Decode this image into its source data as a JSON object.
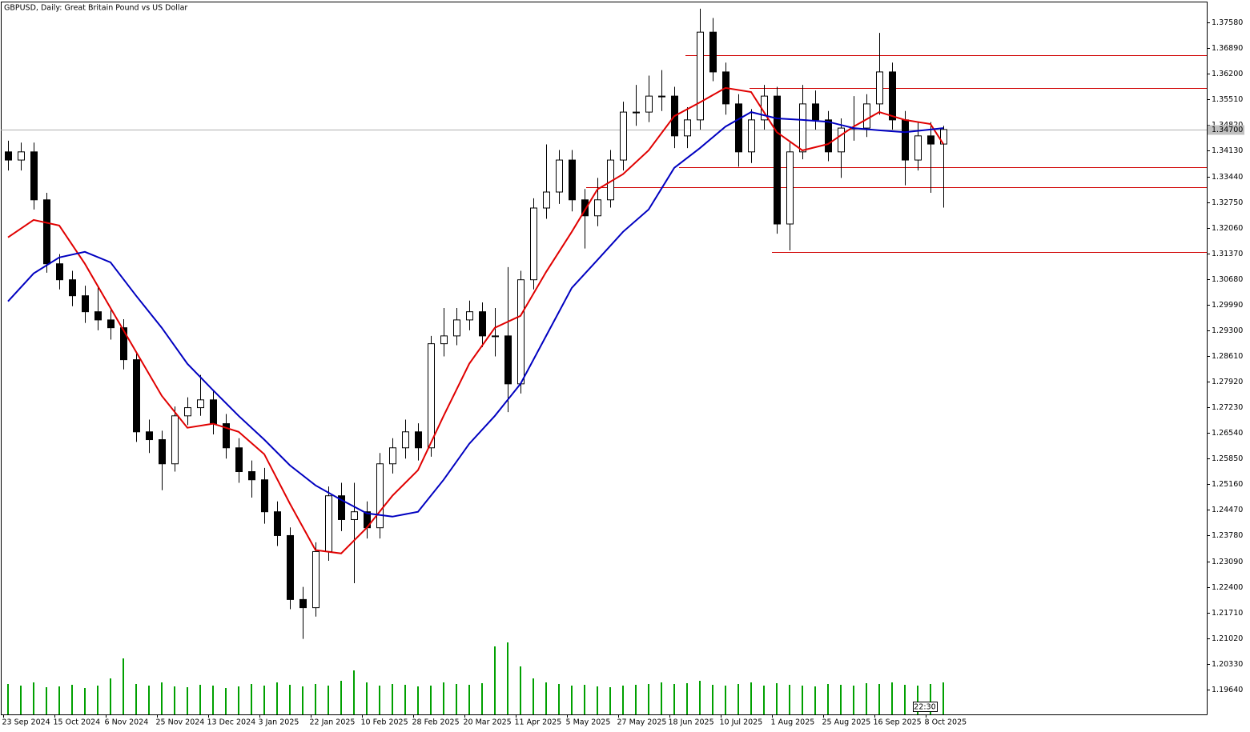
{
  "chart_data": {
    "type": "candlestick",
    "title": "GBPUSD, Daily:  Great Britain Pound vs US Dollar",
    "x": [
      0,
      4,
      8,
      12,
      16,
      20,
      24,
      28,
      32,
      36,
      40,
      44,
      48,
      52,
      56,
      60,
      64,
      68,
      72,
      76,
      80,
      84,
      88,
      92,
      96,
      100,
      104,
      108,
      112,
      116,
      120,
      124,
      128,
      132,
      136,
      140,
      144,
      148,
      152,
      156,
      160,
      164,
      168,
      172,
      176,
      180,
      184,
      188,
      192,
      196,
      200,
      204,
      208,
      212,
      216,
      220,
      224,
      228,
      232,
      236,
      240,
      244,
      248,
      252,
      256,
      260,
      264,
      268,
      272,
      276,
      280,
      284,
      288,
      292
    ],
    "open": [
      1.341,
      1.3388,
      1.341,
      1.3281,
      1.3109,
      1.3066,
      1.3023,
      1.298,
      1.2958,
      1.2937,
      1.2851,
      1.2657,
      1.2636,
      1.2571,
      1.27,
      1.2722,
      1.2743,
      1.2679,
      1.2614,
      1.255,
      1.2528,
      1.2442,
      1.2378,
      1.2206,
      1.2184,
      1.2335,
      1.2485,
      1.2421,
      1.2442,
      1.2399,
      1.2571,
      1.2614,
      1.2657,
      1.2614,
      1.2894,
      1.2915,
      1.2958,
      1.298,
      1.2915,
      1.2915,
      1.2786,
      1.3066,
      1.3259,
      1.3302,
      1.3388,
      1.3281,
      1.3238,
      1.3281,
      1.3388,
      1.3517,
      1.3517,
      1.356,
      1.356,
      1.3453,
      1.3496,
      1.3732,
      1.3625,
      1.3539,
      1.341,
      1.3496,
      1.356,
      1.3216,
      1.341,
      1.3539,
      1.3496,
      1.341,
      1.3474,
      1.3474,
      1.3539,
      1.3625,
      1.3496,
      1.3388,
      1.3453,
      1.3431
    ],
    "high": [
      1.344,
      1.3435,
      1.3435,
      1.33,
      1.3135,
      1.309,
      1.305,
      1.3045,
      1.2985,
      1.296,
      1.287,
      1.269,
      1.266,
      1.2725,
      1.275,
      1.281,
      1.277,
      1.2705,
      1.264,
      1.258,
      1.256,
      1.247,
      1.24,
      1.224,
      1.236,
      1.251,
      1.252,
      1.252,
      1.247,
      1.26,
      1.264,
      1.269,
      1.268,
      1.2915,
      1.299,
      1.299,
      1.301,
      1.3005,
      1.299,
      1.31,
      1.309,
      1.3285,
      1.343,
      1.3415,
      1.3415,
      1.331,
      1.334,
      1.3415,
      1.3545,
      1.359,
      1.3615,
      1.363,
      1.3585,
      1.353,
      1.3795,
      1.377,
      1.365,
      1.3565,
      1.3525,
      1.359,
      1.3585,
      1.3435,
      1.359,
      1.3575,
      1.352,
      1.35,
      1.356,
      1.3565,
      1.373,
      1.365,
      1.352,
      1.349,
      1.349,
      1.348
    ],
    "low": [
      1.336,
      1.336,
      1.3255,
      1.3085,
      1.304,
      1.2995,
      1.295,
      1.293,
      1.2905,
      1.2825,
      1.263,
      1.26,
      1.25,
      1.255,
      1.2675,
      1.27,
      1.265,
      1.2585,
      1.252,
      1.248,
      1.241,
      1.235,
      1.218,
      1.21,
      1.216,
      1.231,
      1.239,
      1.225,
      1.237,
      1.237,
      1.2545,
      1.2585,
      1.258,
      1.259,
      1.286,
      1.289,
      1.293,
      1.2885,
      1.286,
      1.271,
      1.276,
      1.304,
      1.323,
      1.327,
      1.325,
      1.315,
      1.321,
      1.326,
      1.336,
      1.348,
      1.349,
      1.352,
      1.342,
      1.342,
      1.347,
      1.36,
      1.351,
      1.337,
      1.338,
      1.347,
      1.319,
      1.3145,
      1.339,
      1.347,
      1.3385,
      1.334,
      1.344,
      1.345,
      1.351,
      1.347,
      1.332,
      1.336,
      1.33,
      1.326
    ],
    "close": [
      1.3388,
      1.341,
      1.3281,
      1.3109,
      1.3066,
      1.3023,
      1.298,
      1.2958,
      1.2937,
      1.2851,
      1.2657,
      1.2636,
      1.2571,
      1.27,
      1.2722,
      1.2743,
      1.2679,
      1.2614,
      1.255,
      1.2528,
      1.2442,
      1.2378,
      1.2206,
      1.2184,
      1.2335,
      1.2485,
      1.2421,
      1.2442,
      1.2399,
      1.2571,
      1.2614,
      1.2657,
      1.2614,
      1.2894,
      1.2915,
      1.2958,
      1.298,
      1.2915,
      1.2915,
      1.2786,
      1.3066,
      1.3259,
      1.3302,
      1.3388,
      1.3281,
      1.3238,
      1.3281,
      1.3388,
      1.3517,
      1.3517,
      1.356,
      1.356,
      1.3453,
      1.3496,
      1.3732,
      1.3625,
      1.3539,
      1.341,
      1.3496,
      1.356,
      1.3216,
      1.341,
      1.3539,
      1.3496,
      1.341,
      1.3474,
      1.3474,
      1.3539,
      1.3625,
      1.3496,
      1.3388,
      1.3453,
      1.3431,
      1.347
    ],
    "up_color": "#ffffff",
    "down_color": "#000000",
    "overlays": [
      {
        "color": "#e00000",
        "x": [
          0,
          8,
          16,
          24,
          32,
          40,
          48,
          56,
          64,
          72,
          80,
          88,
          96,
          104,
          112,
          120,
          128,
          136,
          144,
          152,
          160,
          168,
          176,
          184,
          192,
          200,
          208,
          216,
          224,
          232,
          240,
          248,
          256,
          264,
          272,
          280,
          288,
          292
        ],
        "values": [
          1.318,
          1.3227,
          1.3212,
          1.3109,
          1.299,
          1.2872,
          1.2754,
          1.2668,
          1.2679,
          1.2657,
          1.2597,
          1.2464,
          1.2339,
          1.233,
          1.2399,
          1.2485,
          1.2554,
          1.27,
          1.284,
          1.2937,
          1.2969,
          1.3087,
          1.3195,
          1.3309,
          1.335,
          1.3414,
          1.3506,
          1.3543,
          1.3582,
          1.3571,
          1.3463,
          1.3414,
          1.3431,
          1.3478,
          1.3517,
          1.3496,
          1.3485,
          1.3431
        ]
      },
      {
        "color": "#0000c0",
        "x": [
          0,
          8,
          16,
          24,
          32,
          40,
          48,
          56,
          64,
          72,
          80,
          88,
          96,
          104,
          112,
          120,
          128,
          136,
          144,
          152,
          160,
          168,
          176,
          184,
          192,
          200,
          208,
          216,
          224,
          232,
          240,
          248,
          256,
          264,
          272,
          280,
          288,
          292
        ],
        "values": [
          1.3008,
          1.3083,
          1.3126,
          1.3141,
          1.3113,
          1.3023,
          1.2937,
          1.284,
          1.2769,
          1.27,
          1.2636,
          1.2567,
          1.2513,
          1.2474,
          1.2438,
          1.2429,
          1.2442,
          1.2528,
          1.2625,
          1.27,
          1.2786,
          1.2915,
          1.3044,
          1.3119,
          1.3195,
          1.3255,
          1.3367,
          1.342,
          1.3478,
          1.3517,
          1.35,
          1.3496,
          1.3491,
          1.3474,
          1.3468,
          1.3463,
          1.347,
          1.3474
        ]
      }
    ],
    "levels": {
      "color": "#d00000",
      "values": [
        1.367,
        1.3582,
        1.3369,
        1.3315,
        1.3141
      ],
      "start": [
        213,
        233,
        211,
        182,
        240
      ]
    },
    "current_price": {
      "value": 1.347,
      "label": "1.34700"
    },
    "volume": {
      "color": "#00a000",
      "values": [
        38,
        36,
        40,
        34,
        35,
        37,
        33,
        36,
        45,
        70,
        38,
        36,
        40,
        35,
        34,
        37,
        36,
        33,
        35,
        38,
        36,
        40,
        37,
        35,
        38,
        36,
        42,
        55,
        40,
        36,
        38,
        37,
        35,
        36,
        40,
        38,
        37,
        39,
        85,
        90,
        60,
        45,
        40,
        38,
        36,
        37,
        35,
        34,
        36,
        37,
        38,
        40,
        38,
        39,
        42,
        37,
        36,
        38,
        40,
        36,
        39,
        37,
        36,
        35,
        38,
        37,
        36,
        39,
        38,
        40,
        37,
        36,
        38,
        40
      ]
    },
    "time_label": "22:30",
    "xlim": [
      0,
      375.75
    ],
    "ylim": [
      1.1897,
      1.3812
    ],
    "xticks": [
      {
        "value": 0,
        "label": "23 Sep 2024"
      },
      {
        "value": 16,
        "label": "15 Oct 2024"
      },
      {
        "value": 32,
        "label": "6 Nov 2024"
      },
      {
        "value": 48,
        "label": "25 Nov 2024"
      },
      {
        "value": 64,
        "label": "13 Dec 2024"
      },
      {
        "value": 80,
        "label": "3 Jan 2025"
      },
      {
        "value": 96,
        "label": "22 Jan 2025"
      },
      {
        "value": 112,
        "label": "10 Feb 2025"
      },
      {
        "value": 128,
        "label": "28 Feb 2025"
      },
      {
        "value": 144,
        "label": "20 Mar 2025"
      },
      {
        "value": 160,
        "label": "11 Apr 2025"
      },
      {
        "value": 176,
        "label": "5 May 2025"
      },
      {
        "value": 192,
        "label": "27 May 2025"
      },
      {
        "value": 208,
        "label": "18 Jun 2025"
      },
      {
        "value": 224,
        "label": "10 Jul 2025"
      },
      {
        "value": 240,
        "label": "1 Aug 2025"
      },
      {
        "value": 256,
        "label": "25 Aug 2025"
      },
      {
        "value": 272,
        "label": "16 Sep 2025"
      },
      {
        "value": 288,
        "label": "8 Oct 2025"
      }
    ],
    "yticks": [
      {
        "value": 1.3758,
        "label": "1.37580"
      },
      {
        "value": 1.3689,
        "label": "1.36890"
      },
      {
        "value": 1.362,
        "label": "1.36200"
      },
      {
        "value": 1.3551,
        "label": "1.35510"
      },
      {
        "value": 1.3482,
        "label": "1.34820"
      },
      {
        "value": 1.3413,
        "label": "1.34130"
      },
      {
        "value": 1.3344,
        "label": "1.33440"
      },
      {
        "value": 1.3275,
        "label": "1.32750"
      },
      {
        "value": 1.3206,
        "label": "1.32060"
      },
      {
        "value": 1.3137,
        "label": "1.31370"
      },
      {
        "value": 1.3068,
        "label": "1.30680"
      },
      {
        "value": 1.2999,
        "label": "1.29990"
      },
      {
        "value": 1.293,
        "label": "1.29300"
      },
      {
        "value": 1.2861,
        "label": "1.28610"
      },
      {
        "value": 1.2792,
        "label": "1.27920"
      },
      {
        "value": 1.2723,
        "label": "1.27230"
      },
      {
        "value": 1.2654,
        "label": "1.26540"
      },
      {
        "value": 1.2585,
        "label": "1.25850"
      },
      {
        "value": 1.2516,
        "label": "1.25160"
      },
      {
        "value": 1.2447,
        "label": "1.24470"
      },
      {
        "value": 1.2378,
        "label": "1.23780"
      },
      {
        "value": 1.2309,
        "label": "1.23090"
      },
      {
        "value": 1.224,
        "label": "1.22400"
      },
      {
        "value": 1.2171,
        "label": "1.21710"
      },
      {
        "value": 1.2102,
        "label": "1.21020"
      },
      {
        "value": 1.2033,
        "label": "1.20330"
      },
      {
        "value": 1.1964,
        "label": "1.19640"
      }
    ]
  }
}
